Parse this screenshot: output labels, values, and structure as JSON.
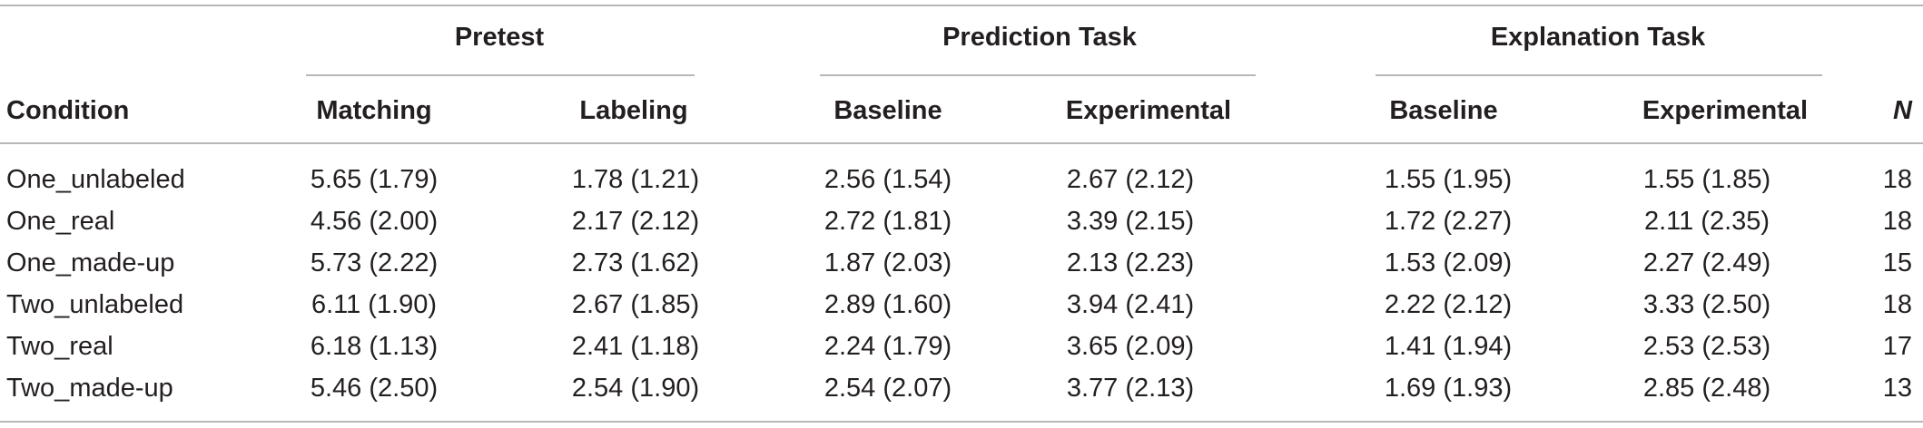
{
  "table": {
    "group_headers": [
      {
        "label": "Pretest"
      },
      {
        "label": "Prediction Task"
      },
      {
        "label": "Explanation Task"
      }
    ],
    "columns": [
      {
        "label": "Condition"
      },
      {
        "label": "Matching"
      },
      {
        "label": "Labeling"
      },
      {
        "label": "Baseline"
      },
      {
        "label": "Experimental"
      },
      {
        "label": "Baseline"
      },
      {
        "label": "Experimental"
      },
      {
        "label": "N"
      }
    ],
    "rows": [
      {
        "cells": [
          "One_unlabeled",
          "5.65 (1.79)",
          "1.78 (1.21)",
          "2.56 (1.54)",
          "2.67 (2.12)",
          "1.55 (1.95)",
          "1.55 (1.85)",
          "18"
        ]
      },
      {
        "cells": [
          "One_real",
          "4.56 (2.00)",
          "2.17 (2.12)",
          "2.72 (1.81)",
          "3.39 (2.15)",
          "1.72 (2.27)",
          "2.11 (2.35)",
          "18"
        ]
      },
      {
        "cells": [
          "One_made-up",
          "5.73 (2.22)",
          "2.73 (1.62)",
          "1.87 (2.03)",
          "2.13 (2.23)",
          "1.53 (2.09)",
          "2.27 (2.49)",
          "15"
        ]
      },
      {
        "cells": [
          "Two_unlabeled",
          "6.11 (1.90)",
          "2.67 (1.85)",
          "2.89 (1.60)",
          "3.94 (2.41)",
          "2.22 (2.12)",
          "3.33 (2.50)",
          "18"
        ]
      },
      {
        "cells": [
          "Two_real",
          "6.18 (1.13)",
          "2.41 (1.18)",
          "2.24 (1.79)",
          "3.65 (2.09)",
          "1.41 (1.94)",
          "2.53 (2.53)",
          "17"
        ]
      },
      {
        "cells": [
          "Two_made-up",
          "5.46 (2.50)",
          "2.54 (1.90)",
          "2.54 (2.07)",
          "3.77 (2.13)",
          "1.69 (1.93)",
          "2.85 (2.48)",
          "13"
        ]
      }
    ]
  }
}
